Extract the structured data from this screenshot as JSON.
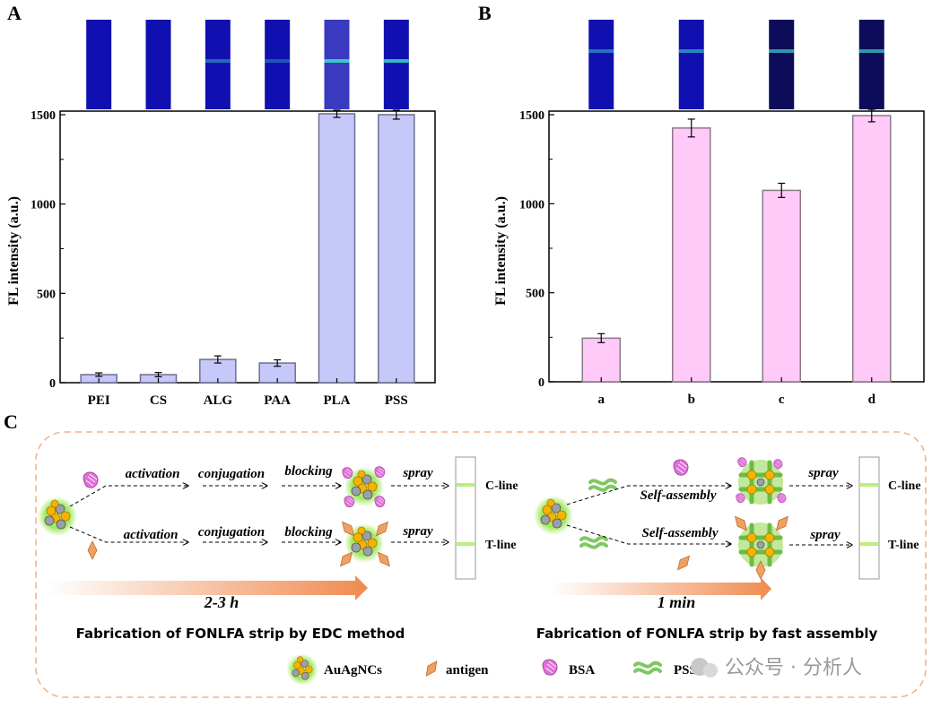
{
  "panels": {
    "a": "A",
    "b": "B",
    "c": "C"
  },
  "colors": {
    "bar_a": "#c5c8f8",
    "bar_a_edge": "#6d6f8f",
    "bar_b": "#ffc9f8",
    "bar_b_edge": "#8a7a88",
    "strip_blue": "#1010b0",
    "strip_dark": "#0c0c5a",
    "band": "#3ad6c8",
    "dashed_frame": "#f0b48a",
    "arrow_orange": "#f08a50",
    "line_green": "#b8f078"
  },
  "chart_data": [
    {
      "type": "bar",
      "panel": "A",
      "categories": [
        "PEI",
        "CS",
        "ALG",
        "PAA",
        "PLA",
        "PSS"
      ],
      "values": [
        45,
        45,
        130,
        110,
        1505,
        1500
      ],
      "errors": [
        10,
        12,
        20,
        18,
        20,
        25
      ],
      "ylabel": "FL intensity  (a.u.)",
      "xlabel": "",
      "ylim": [
        0,
        1520
      ],
      "yticks": [
        0,
        500,
        1000,
        1500
      ],
      "strip_images": [
        {
          "band": 0.0,
          "tone": "blue"
        },
        {
          "band": 0.0,
          "tone": "blue"
        },
        {
          "band": 0.45,
          "tone": "blue"
        },
        {
          "band": 0.35,
          "tone": "blue"
        },
        {
          "band": 0.9,
          "tone": "light"
        },
        {
          "band": 0.85,
          "tone": "blue"
        }
      ]
    },
    {
      "type": "bar",
      "panel": "B",
      "categories": [
        "a",
        "b",
        "c",
        "d"
      ],
      "values": [
        245,
        1425,
        1075,
        1495
      ],
      "errors": [
        25,
        50,
        40,
        35
      ],
      "ylabel": "FL intensity  (a.u.)",
      "xlabel": "",
      "ylim": [
        0,
        1520
      ],
      "yticks": [
        0,
        500,
        1000,
        1500
      ],
      "strip_images": [
        {
          "band": 0.5,
          "tone": "blue"
        },
        {
          "band": 0.6,
          "tone": "blue"
        },
        {
          "band": 0.7,
          "tone": "dark"
        },
        {
          "band": 0.7,
          "tone": "dark"
        }
      ]
    }
  ],
  "schematic": {
    "left": {
      "steps_top": [
        "activation",
        "conjugation",
        "blocking",
        "spray"
      ],
      "steps_bottom": [
        "activation",
        "conjugation",
        "blocking",
        "spray"
      ],
      "c_line": "C-line",
      "t_line": "T-line",
      "time": "2-3 h",
      "caption": "Fabrication of FONLFA strip by EDC method"
    },
    "right": {
      "assembly_top": "Self-assembly",
      "assembly_bottom": "Self-assembly",
      "spray_top": "spray",
      "spray_bottom": "spray",
      "c_line": "C-line",
      "t_line": "T-line",
      "time": "1 min",
      "caption": "Fabrication of FONLFA strip by fast assembly"
    },
    "legend": {
      "nc": "AuAgNCs",
      "antigen": "antigen",
      "bsa": "BSA",
      "pss": "PSS"
    },
    "watermark": "公众号 · 分析人"
  }
}
